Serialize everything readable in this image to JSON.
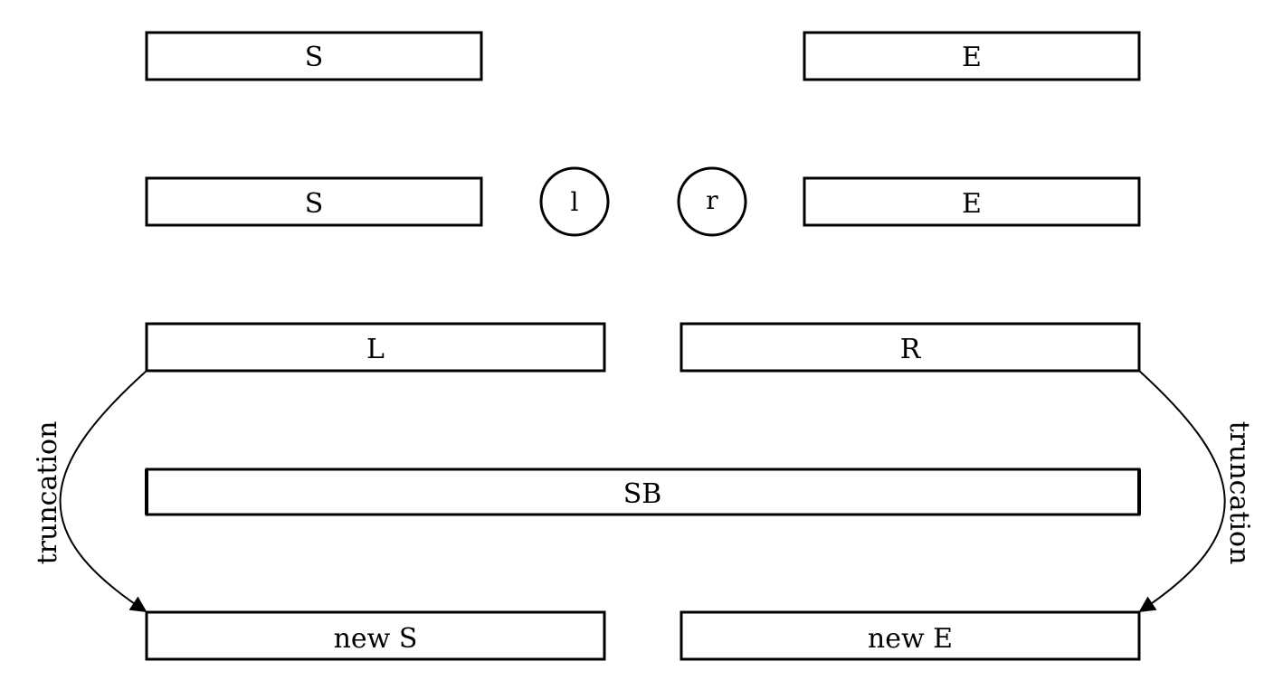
{
  "row1": {
    "left_box": "S",
    "right_box": "E"
  },
  "row2": {
    "left_box": "S",
    "left_circle": "l",
    "right_circle": "r",
    "right_box": "E"
  },
  "row3": {
    "left_box": "L",
    "right_box": "R"
  },
  "row4": {
    "wide_box": "SB"
  },
  "row5": {
    "left_box": "new S",
    "right_box": "new E"
  },
  "arrows": {
    "left_label": "truncation",
    "right_label": "truncation"
  }
}
